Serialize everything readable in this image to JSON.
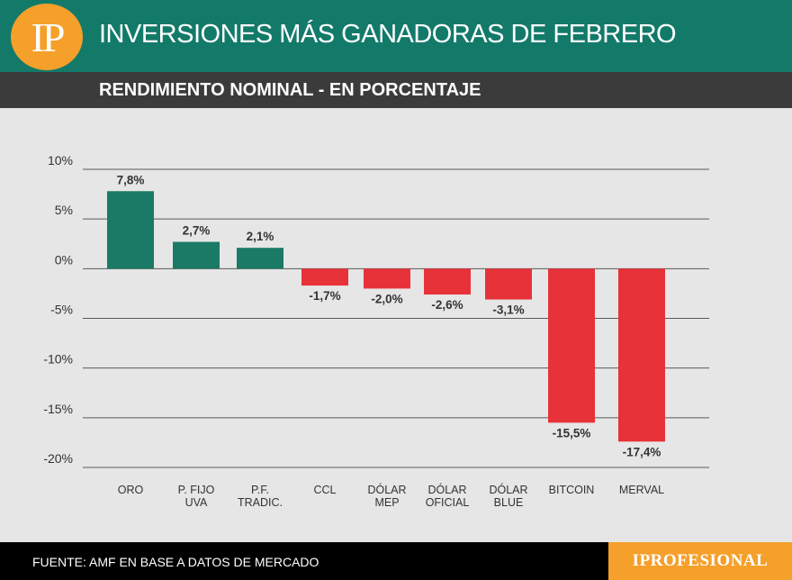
{
  "header": {
    "logo_text": "IP",
    "title": "INVERSIONES MÁS GANADORAS DE FEBRERO",
    "subtitle": "RENDIMIENTO NOMINAL - EN PORCENTAJE"
  },
  "footer": {
    "source": "FUENTE: AMF EN BASE A DATOS DE MERCADO",
    "brand": "IPROFESIONAL"
  },
  "colors": {
    "header_bg": "#137a6a",
    "positive": "#1a7a66",
    "negative": "#e8323a",
    "accent": "#f5a02a"
  },
  "chart_data": {
    "type": "bar",
    "title": "INVERSIONES MÁS GANADORAS DE FEBRERO",
    "subtitle": "RENDIMIENTO NOMINAL - EN PORCENTAJE",
    "xlabel": "",
    "ylabel": "",
    "ylim": [
      -20,
      10
    ],
    "yticks": [
      10,
      5,
      0,
      -5,
      -10,
      -15,
      -20
    ],
    "ytick_labels": [
      "10%",
      "5%",
      "0%",
      "-5%",
      "-10%",
      "-15%",
      "-20%"
    ],
    "grid": true,
    "categories": [
      [
        "ORO"
      ],
      [
        "P. FIJO",
        "UVA"
      ],
      [
        "P.F.",
        "TRADIC."
      ],
      [
        "CCL"
      ],
      [
        "DÓLAR",
        "MEP"
      ],
      [
        "DÓLAR",
        "OFICIAL"
      ],
      [
        "DÓLAR",
        "BLUE"
      ],
      [
        "BITCOIN"
      ],
      [
        "MERVAL"
      ]
    ],
    "values": [
      7.8,
      2.7,
      2.1,
      -1.7,
      -2.0,
      -2.6,
      -3.1,
      -15.5,
      -17.4
    ],
    "value_labels": [
      "7,8%",
      "2,7%",
      "2,1%",
      "-1,7%",
      "-2,0%",
      "-2,6%",
      "-3,1%",
      "-15,5%",
      "-17,4%"
    ]
  }
}
